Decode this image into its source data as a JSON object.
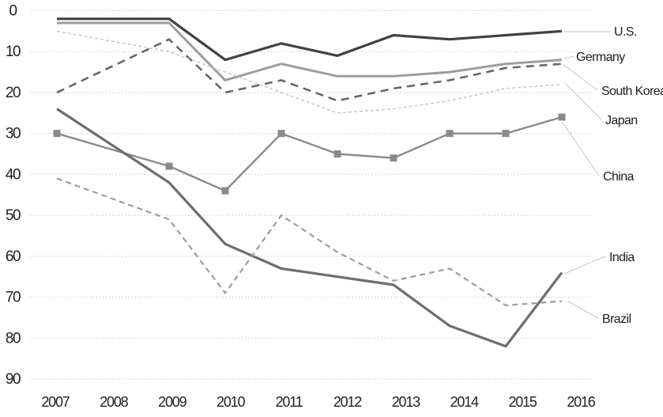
{
  "chart_data": {
    "type": "line",
    "title": "",
    "x_axis": {
      "tick_labels": [
        "2007",
        "2008",
        "2009",
        "2010",
        "2011",
        "2012",
        "2013",
        "2014",
        "2015",
        "2016"
      ]
    },
    "y_axis": {
      "tick_labels": [
        "0",
        "10",
        "20",
        "30",
        "40",
        "50",
        "60",
        "70",
        "80",
        "90"
      ],
      "min": 0,
      "max": 90,
      "inverted": true,
      "grid": true
    },
    "data_years": [
      2007,
      2009,
      2010,
      2011,
      2012,
      2013,
      2014,
      2015,
      2016
    ],
    "note": "no data point at 2008; lines connect 2007 directly to 2009",
    "legend_position": "right-edge-labels",
    "series": [
      {
        "name": "U.S.",
        "slug": "us",
        "values": [
          2,
          2,
          12,
          8,
          11,
          6,
          7,
          6,
          5
        ],
        "color": "#414141",
        "width": 3.2,
        "dash": "",
        "marker": "none"
      },
      {
        "name": "Germany",
        "slug": "germany",
        "values": [
          3,
          3,
          17,
          13,
          16,
          16,
          15,
          13,
          12
        ],
        "color": "#9d9d9d",
        "width": 3.0,
        "dash": "",
        "marker": "none"
      },
      {
        "name": "South Korea",
        "slug": "south-korea",
        "values": [
          20,
          7,
          20,
          17,
          22,
          19,
          17,
          14,
          13
        ],
        "color": "#686868",
        "width": 2.6,
        "dash": "10 7",
        "marker": "none"
      },
      {
        "name": "Japan",
        "slug": "japan",
        "values": [
          5,
          10,
          15,
          20,
          25,
          24,
          22,
          19,
          18
        ],
        "color": "#c7c7c7",
        "width": 1.5,
        "dash": "4 3",
        "marker": "none"
      },
      {
        "name": "China",
        "slug": "china",
        "values": [
          30,
          38,
          44,
          30,
          35,
          36,
          30,
          30,
          26
        ],
        "color": "#8a8a8a",
        "width": 2.4,
        "dash": "",
        "marker": "square"
      },
      {
        "name": "India",
        "slug": "india",
        "values": [
          24,
          42,
          57,
          63,
          65,
          67,
          77,
          82,
          64
        ],
        "color": "#6e6e6e",
        "width": 3.2,
        "dash": "",
        "marker": "none"
      },
      {
        "name": "Brazil",
        "slug": "brazil",
        "values": [
          41,
          51,
          69,
          50,
          59,
          66,
          63,
          72,
          71
        ],
        "color": "#9d9d9d",
        "width": 2.2,
        "dash": "7 5",
        "marker": "none"
      }
    ],
    "colors": {
      "grid": "#c9c9c9",
      "text": "#222222",
      "leader_line": "#c4c4c4",
      "background": "#ffffff"
    },
    "marker_size": 9
  }
}
